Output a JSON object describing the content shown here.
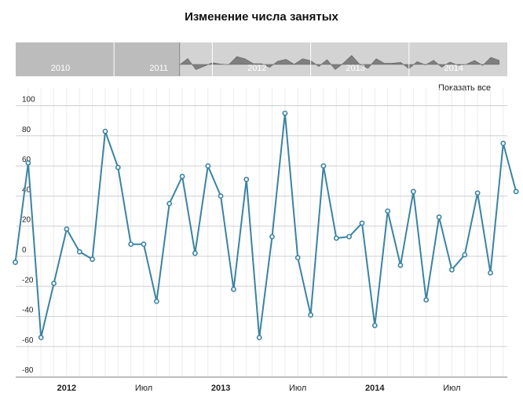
{
  "title": "Изменение числа занятых",
  "show_all_label": "Показать все",
  "colors": {
    "series": "#3a83a3",
    "grid_major": "#cfcfcf",
    "grid_minor": "#ececec",
    "navigator_selected": "#bcbcbc",
    "navigator_unselected": "#d3d3d3",
    "navigator_area": "#7f7f7f"
  },
  "navigator": {
    "year_labels": [
      "2010",
      "2011",
      "2012",
      "2013",
      "2014"
    ],
    "selected_range": [
      "2011-09",
      "2014-12"
    ]
  },
  "chart_data": {
    "type": "line",
    "title": "Изменение числа занятых",
    "xlabel": "",
    "ylabel": "",
    "ylim": [
      -80,
      100
    ],
    "yticks": [
      -80,
      -60,
      -40,
      -20,
      0,
      20,
      40,
      60,
      80,
      100
    ],
    "xticks": [
      "2012",
      "Июл",
      "2013",
      "Июл",
      "2014",
      "Июл"
    ],
    "grid": true,
    "series": [
      {
        "x": [
          "2011-09",
          "2011-10",
          "2011-11",
          "2011-12",
          "2012-01",
          "2012-02",
          "2012-03",
          "2012-04",
          "2012-05",
          "2012-06",
          "2012-07",
          "2012-08",
          "2012-09",
          "2012-10",
          "2012-11",
          "2012-12",
          "2013-01",
          "2013-02",
          "2013-03",
          "2013-04",
          "2013-05",
          "2013-06",
          "2013-07",
          "2013-08",
          "2013-09",
          "2013-10",
          "2013-11",
          "2013-12",
          "2014-01",
          "2014-02",
          "2014-03",
          "2014-04",
          "2014-05",
          "2014-06",
          "2014-07",
          "2014-08",
          "2014-09",
          "2014-10",
          "2014-11",
          "2014-12"
        ],
        "values": [
          -4,
          62,
          -54,
          -18,
          18,
          3,
          -2,
          83,
          59,
          8,
          8,
          -30,
          35,
          53,
          2,
          60,
          40,
          -22,
          51,
          -54,
          13,
          95,
          -1,
          -39,
          60,
          12,
          13,
          22,
          -46,
          30,
          -6,
          43,
          -29,
          26,
          -9,
          1,
          42,
          -11,
          75,
          43
        ]
      }
    ]
  }
}
